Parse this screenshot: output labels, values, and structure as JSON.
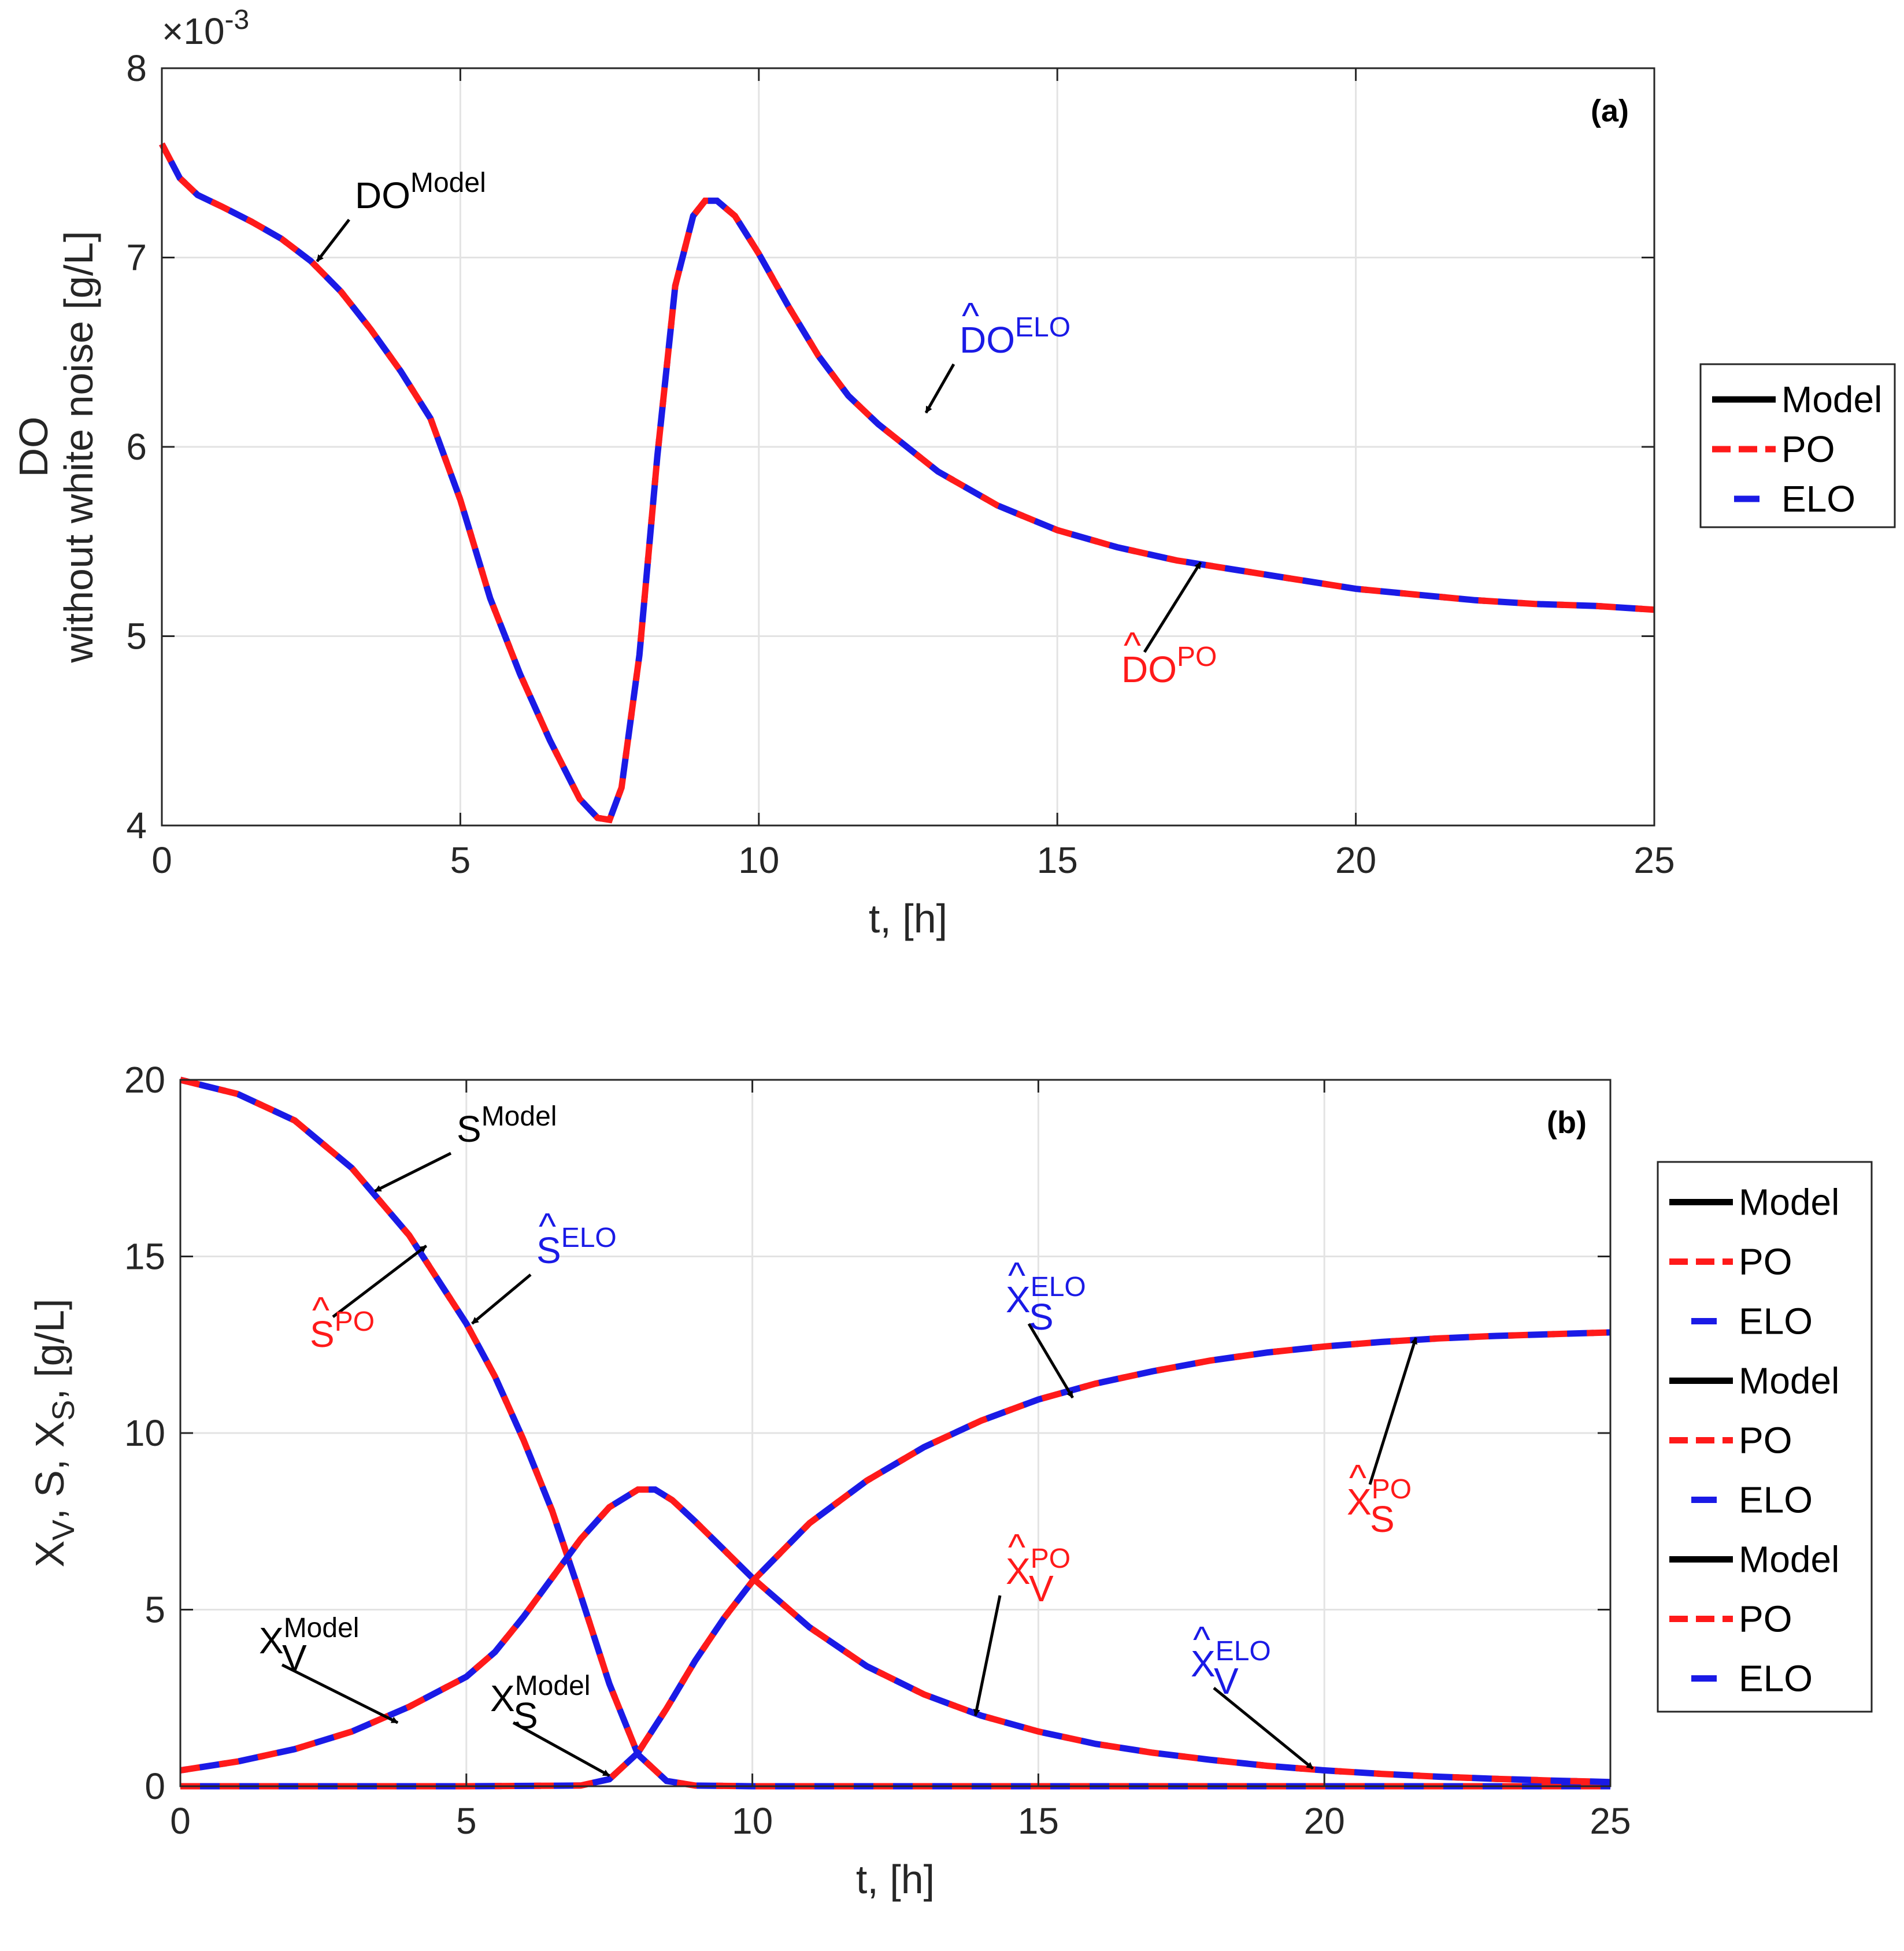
{
  "colors": {
    "model": "#000000",
    "po": "#ff1a1a",
    "elo": "#1a1ae6",
    "grid": "#e3e3e3",
    "axis": "#262626"
  },
  "chart_data": [
    {
      "type": "line",
      "panel": "(a)",
      "exponent_label": "×10",
      "exponent_power": "-3",
      "xlabel": "t, [h]",
      "ylabel_line1": "DO",
      "ylabel_line2": "without white noise [g/L]",
      "xlim": [
        0,
        25
      ],
      "ylim": [
        4,
        8
      ],
      "xticks": [
        0,
        5,
        10,
        15,
        20,
        25
      ],
      "yticks": [
        4,
        5,
        6,
        7,
        8
      ],
      "grid": true,
      "legend": {
        "position": "right-outside",
        "entries": [
          "Model",
          "PO",
          "ELO"
        ]
      },
      "series": [
        {
          "name": "DO",
          "x": [
            0,
            0.3,
            0.6,
            1,
            1.5,
            2,
            2.5,
            3,
            3.5,
            4,
            4.5,
            5,
            5.5,
            6,
            6.5,
            7,
            7.3,
            7.5,
            7.7,
            8,
            8.3,
            8.6,
            8.9,
            9.1,
            9.3,
            9.6,
            10,
            10.5,
            11,
            11.5,
            12,
            13,
            14,
            15,
            16,
            17,
            18,
            19,
            20,
            21,
            22,
            23,
            24,
            25
          ],
          "y": [
            7.6,
            7.42,
            7.33,
            7.27,
            7.19,
            7.1,
            6.98,
            6.82,
            6.62,
            6.4,
            6.15,
            5.72,
            5.2,
            4.8,
            4.45,
            4.14,
            4.04,
            4.03,
            4.2,
            4.9,
            5.95,
            6.85,
            7.22,
            7.3,
            7.3,
            7.22,
            7.02,
            6.74,
            6.48,
            6.27,
            6.12,
            5.87,
            5.69,
            5.56,
            5.47,
            5.4,
            5.35,
            5.3,
            5.25,
            5.22,
            5.19,
            5.17,
            5.16,
            5.14
          ]
        }
      ],
      "annotations": [
        {
          "base": "DO",
          "sup": "Model",
          "hat": "",
          "color": "model",
          "point": [
            2.6,
            6.98
          ]
        },
        {
          "base": "DO",
          "sup": "ELO",
          "hat": "^",
          "color": "elo",
          "point": [
            12.8,
            6.18
          ]
        },
        {
          "base": "DO",
          "sup": "PO",
          "hat": "^",
          "color": "po",
          "point": [
            17.4,
            5.39
          ]
        }
      ]
    },
    {
      "type": "line",
      "panel": "(b)",
      "xlabel": "t, [h]",
      "ylabel": "X_V, S, X_S, [g/L]",
      "xlim": [
        0,
        25
      ],
      "ylim": [
        0,
        20
      ],
      "xticks": [
        0,
        5,
        10,
        15,
        20,
        25
      ],
      "yticks": [
        0,
        5,
        10,
        15,
        20
      ],
      "grid": true,
      "legend": {
        "position": "right-outside",
        "entries": [
          "Model",
          "PO",
          "ELO",
          "Model",
          "PO",
          "ELO",
          "Model",
          "PO",
          "ELO"
        ]
      },
      "series": [
        {
          "name": "S",
          "x": [
            0,
            1,
            2,
            3,
            4,
            5,
            5.5,
            6,
            6.5,
            7,
            7.5,
            8,
            8.5,
            9,
            10,
            12,
            15,
            20,
            25
          ],
          "y": [
            20,
            19.6,
            18.85,
            17.5,
            15.6,
            13.1,
            11.6,
            9.8,
            7.8,
            5.4,
            2.9,
            0.9,
            0.15,
            0.02,
            0,
            0,
            0,
            0,
            0
          ]
        },
        {
          "name": "X_V",
          "x": [
            0,
            1,
            2,
            3,
            4,
            5,
            5.5,
            6,
            6.5,
            7,
            7.5,
            8,
            8.3,
            8.6,
            9,
            9.5,
            10,
            11,
            12,
            13,
            14,
            15,
            16,
            17,
            18,
            19,
            20,
            21,
            22,
            23,
            24,
            25
          ],
          "y": [
            0.45,
            0.7,
            1.05,
            1.55,
            2.25,
            3.1,
            3.8,
            4.8,
            5.9,
            7.0,
            7.9,
            8.4,
            8.4,
            8.1,
            7.5,
            6.7,
            5.9,
            4.5,
            3.4,
            2.6,
            2.0,
            1.55,
            1.2,
            0.95,
            0.75,
            0.58,
            0.45,
            0.35,
            0.27,
            0.21,
            0.16,
            0.12
          ]
        },
        {
          "name": "X_S",
          "x": [
            0,
            5,
            7,
            7.5,
            8,
            8.5,
            9,
            9.5,
            10,
            11,
            12,
            13,
            14,
            15,
            16,
            17,
            18,
            19,
            20,
            21,
            22,
            23,
            24,
            25
          ],
          "y": [
            0,
            0,
            0.02,
            0.2,
            0.95,
            2.2,
            3.55,
            4.75,
            5.8,
            7.45,
            8.65,
            9.6,
            10.35,
            10.95,
            11.4,
            11.75,
            12.05,
            12.28,
            12.45,
            12.58,
            12.68,
            12.75,
            12.8,
            12.85
          ]
        }
      ],
      "annotations": [
        {
          "base": "S",
          "sup": "Model",
          "sub": "",
          "hat": "",
          "color": "model",
          "point": [
            3.4,
            16.85
          ]
        },
        {
          "base": "S",
          "sup": "PO",
          "sub": "",
          "hat": "^",
          "color": "po",
          "point": [
            4.3,
            15.3
          ]
        },
        {
          "base": "S",
          "sup": "ELO",
          "sub": "",
          "hat": "^",
          "color": "elo",
          "point": [
            5.1,
            13.1
          ]
        },
        {
          "base": "X",
          "sup": "ELO",
          "sub": "S",
          "hat": "^",
          "color": "elo",
          "point": [
            15.6,
            11.0
          ]
        },
        {
          "base": "X",
          "sup": "PO",
          "sub": "S",
          "hat": "^",
          "color": "po",
          "point": [
            21.6,
            12.7
          ]
        },
        {
          "base": "X",
          "sup": "Model",
          "sub": "V",
          "hat": "",
          "color": "model",
          "point": [
            3.8,
            1.8
          ]
        },
        {
          "base": "X",
          "sup": "Model",
          "sub": "S",
          "hat": "",
          "color": "model",
          "point": [
            7.5,
            0.3
          ]
        },
        {
          "base": "X",
          "sup": "PO",
          "sub": "V",
          "hat": "^",
          "color": "po",
          "point": [
            13.9,
            2.0
          ]
        },
        {
          "base": "X",
          "sup": "ELO",
          "sub": "V",
          "hat": "^",
          "color": "elo",
          "point": [
            19.8,
            0.5
          ]
        }
      ]
    }
  ]
}
